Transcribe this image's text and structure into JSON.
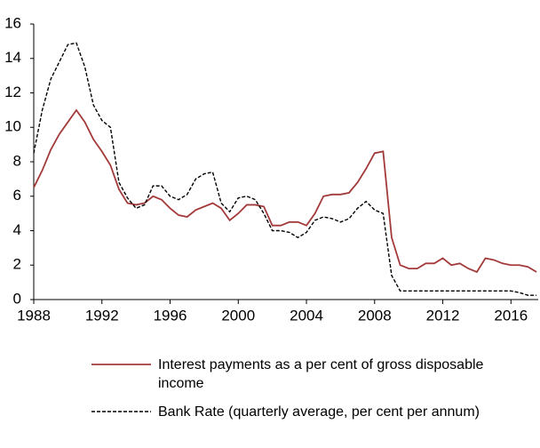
{
  "chart_data": {
    "type": "line",
    "x": [
      1988.0,
      1988.5,
      1989.0,
      1989.5,
      1990.0,
      1990.5,
      1991.0,
      1991.5,
      1992.0,
      1992.5,
      1993.0,
      1993.5,
      1994.0,
      1994.5,
      1995.0,
      1995.5,
      1996.0,
      1996.5,
      1997.0,
      1997.5,
      1998.0,
      1998.5,
      1999.0,
      1999.5,
      2000.0,
      2000.5,
      2001.0,
      2001.5,
      2002.0,
      2002.5,
      2003.0,
      2003.5,
      2004.0,
      2004.5,
      2005.0,
      2005.5,
      2006.0,
      2006.5,
      2007.0,
      2007.5,
      2008.0,
      2008.5,
      2009.0,
      2009.5,
      2010.0,
      2010.5,
      2011.0,
      2011.5,
      2012.0,
      2012.5,
      2013.0,
      2013.5,
      2014.0,
      2014.5,
      2015.0,
      2015.5,
      2016.0,
      2016.5,
      2017.0,
      2017.5
    ],
    "series": [
      {
        "name": "Interest payments as a per cent of gross disposable income",
        "color": "#a33a3a",
        "dash": "solid",
        "values": [
          6.5,
          7.5,
          8.7,
          9.6,
          10.3,
          11.0,
          10.3,
          9.3,
          8.6,
          7.8,
          6.4,
          5.6,
          5.5,
          5.6,
          6.0,
          5.8,
          5.3,
          4.9,
          4.8,
          5.2,
          5.4,
          5.6,
          5.3,
          4.6,
          5.0,
          5.5,
          5.5,
          5.4,
          4.3,
          4.3,
          4.5,
          4.5,
          4.3,
          5.0,
          6.0,
          6.1,
          6.1,
          6.2,
          6.8,
          7.6,
          8.5,
          8.6,
          3.6,
          2.0,
          1.8,
          1.8,
          2.1,
          2.1,
          2.4,
          2.0,
          2.1,
          1.8,
          1.6,
          2.4,
          2.3,
          2.1,
          2.0,
          2.0,
          1.9,
          1.6
        ]
      },
      {
        "name": "Bank Rate (quarterly average, per cent per annum)",
        "color": "#000000",
        "dash": "dashed",
        "values": [
          8.5,
          11.0,
          12.8,
          13.8,
          14.8,
          14.9,
          13.5,
          11.3,
          10.4,
          10.0,
          6.8,
          5.9,
          5.3,
          5.5,
          6.6,
          6.6,
          6.0,
          5.8,
          6.1,
          7.0,
          7.3,
          7.4,
          5.6,
          5.1,
          5.9,
          6.0,
          5.8,
          5.0,
          4.0,
          4.0,
          3.9,
          3.6,
          3.9,
          4.6,
          4.8,
          4.7,
          4.5,
          4.7,
          5.3,
          5.7,
          5.2,
          5.0,
          1.4,
          0.5,
          0.5,
          0.5,
          0.5,
          0.5,
          0.5,
          0.5,
          0.5,
          0.5,
          0.5,
          0.5,
          0.5,
          0.5,
          0.5,
          0.4,
          0.25,
          0.25
        ]
      }
    ],
    "xlim": [
      1988,
      2017.6
    ],
    "xticks": [
      1988,
      1992,
      1996,
      2000,
      2004,
      2008,
      2012,
      2016
    ],
    "ylim": [
      0,
      16
    ],
    "yticks": [
      0,
      2,
      4,
      6,
      8,
      10,
      12,
      14,
      16
    ],
    "grid": false
  }
}
